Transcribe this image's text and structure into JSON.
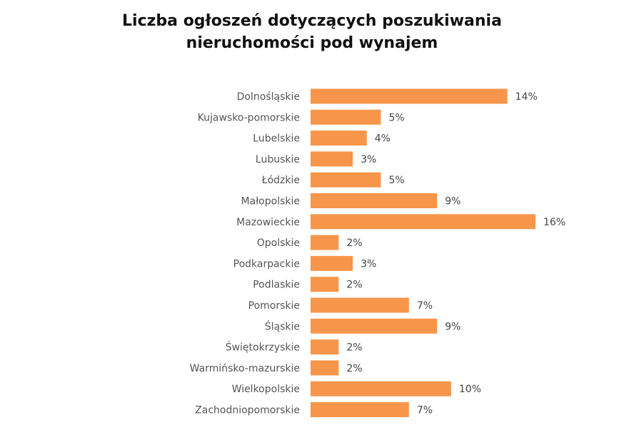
{
  "chart_data": {
    "type": "bar",
    "orientation": "horizontal",
    "title_lines": [
      "Liczba ogłoszeń dotyczących poszukiwania",
      "nieruchomości pod wynajem"
    ],
    "categories": [
      "Dolnośląskie",
      "Kujawsko-pomorskie",
      "Lubelskie",
      "Lubuskie",
      "Łódzkie",
      "Małopolskie",
      "Mazowieckie",
      "Opolskie",
      "Podkarpackie",
      "Podlaskie",
      "Pomorskie",
      "Śląskie",
      "Świętokrzyskie",
      "Warmińsko-mazurskie",
      "Wielkopolskie",
      "Zachodniopomorskie"
    ],
    "values": [
      14,
      5,
      4,
      3,
      5,
      9,
      16,
      2,
      3,
      2,
      7,
      9,
      2,
      2,
      10,
      7
    ],
    "value_labels": [
      "14%",
      "5%",
      "4%",
      "3%",
      "5%",
      "9%",
      "16%",
      "2%",
      "3%",
      "2%",
      "7%",
      "9%",
      "2%",
      "2%",
      "10%",
      "7%"
    ],
    "unit": "%",
    "xlim": [
      0,
      16
    ],
    "grid": false,
    "legend": "none",
    "bar_color": "#F7964A"
  }
}
